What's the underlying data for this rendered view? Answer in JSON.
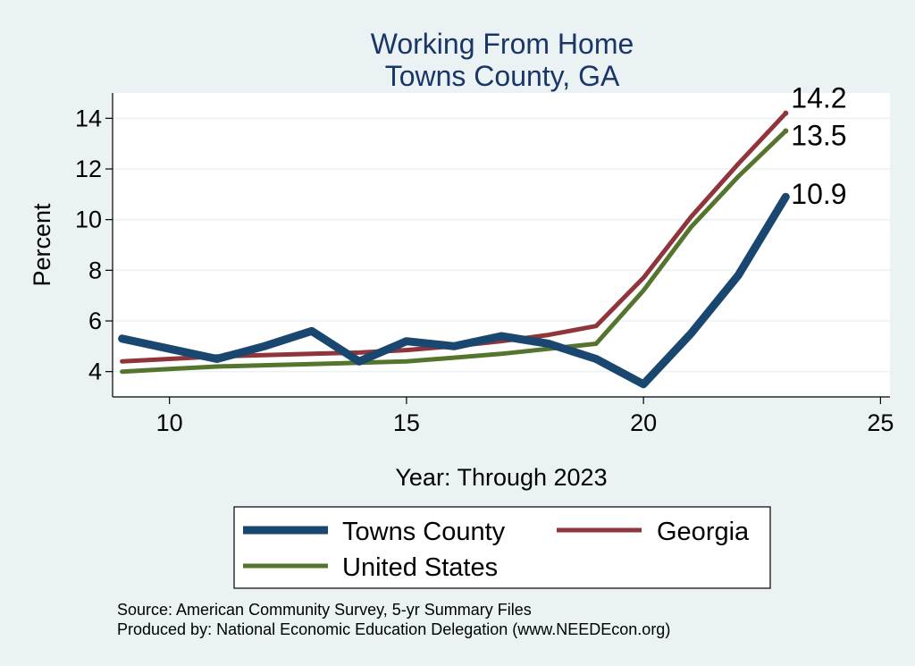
{
  "chart_data": {
    "type": "line",
    "title": "Working From Home",
    "subtitle": "Towns County, GA",
    "xlabel": "Year: Through 2023",
    "ylabel": "Percent",
    "xlim": [
      8.8,
      25.2
    ],
    "ylim": [
      3.0,
      15.0
    ],
    "xticks": [
      10,
      15,
      20,
      25
    ],
    "yticks": [
      4,
      6,
      8,
      10,
      12,
      14
    ],
    "grid": true,
    "legend_position": "bottom",
    "series": [
      {
        "name": "Towns County",
        "color": "#1A476F",
        "x": [
          9,
          10,
          11,
          12,
          13,
          14,
          15,
          16,
          17,
          18,
          19,
          20,
          21,
          22,
          23
        ],
        "y": [
          5.3,
          4.9,
          4.5,
          5.0,
          5.6,
          4.4,
          5.2,
          5.0,
          5.4,
          5.1,
          4.5,
          3.5,
          5.5,
          7.8,
          10.9
        ]
      },
      {
        "name": "Georgia",
        "color": "#90353B",
        "x": [
          9,
          10,
          11,
          12,
          13,
          14,
          15,
          16,
          17,
          18,
          19,
          20,
          21,
          22,
          23
        ],
        "y": [
          4.4,
          4.5,
          4.6,
          4.65,
          4.7,
          4.75,
          4.85,
          5.0,
          5.2,
          5.45,
          5.8,
          7.7,
          10.1,
          12.2,
          14.2
        ]
      },
      {
        "name": "United States",
        "color": "#55752F",
        "x": [
          9,
          10,
          11,
          12,
          13,
          14,
          15,
          16,
          17,
          18,
          19,
          20,
          21,
          22,
          23
        ],
        "y": [
          4.0,
          4.1,
          4.2,
          4.25,
          4.3,
          4.35,
          4.4,
          4.55,
          4.7,
          4.9,
          5.1,
          7.2,
          9.7,
          11.7,
          13.5
        ]
      }
    ],
    "end_labels": [
      {
        "series": "Georgia",
        "text": "14.2"
      },
      {
        "series": "United States",
        "text": "13.5"
      },
      {
        "series": "Towns County",
        "text": "10.9"
      }
    ]
  },
  "notes": {
    "source": "Source: American Community Survey, 5-yr Summary Files",
    "produced_by": "Produced by: National Economic Education Delegation (www.NEEDEcon.org)"
  }
}
